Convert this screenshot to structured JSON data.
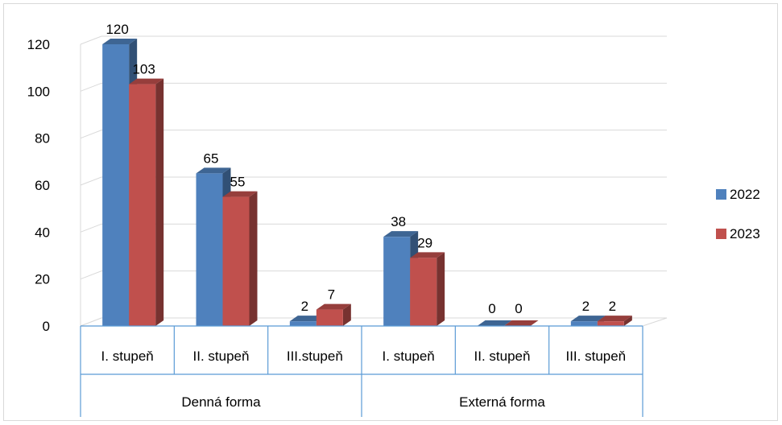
{
  "chart_data": {
    "type": "bar",
    "style": "3d-clustered-column",
    "groups": [
      {
        "label": "Denná forma",
        "categories": [
          "I. stupeň",
          "II. stupeň",
          "III.stupeň"
        ]
      },
      {
        "label": "Externá forma",
        "categories": [
          "I. stupeň",
          "II. stupeň",
          "III. stupeň"
        ]
      }
    ],
    "categories": [
      "I. stupeň",
      "II. stupeň",
      "III.stupeň",
      "I. stupeň",
      "II. stupeň",
      "III. stupeň"
    ],
    "series": [
      {
        "name": "2022",
        "color": "#4f81bd",
        "values": [
          120,
          65,
          2,
          38,
          0,
          2
        ]
      },
      {
        "name": "2023",
        "color": "#c0504d",
        "values": [
          103,
          55,
          7,
          29,
          0,
          2
        ]
      }
    ],
    "ylim": [
      0,
      120
    ],
    "yticks": [
      0,
      20,
      40,
      60,
      80,
      100,
      120
    ],
    "grid": true,
    "data_labels": true,
    "legend_position": "right"
  }
}
